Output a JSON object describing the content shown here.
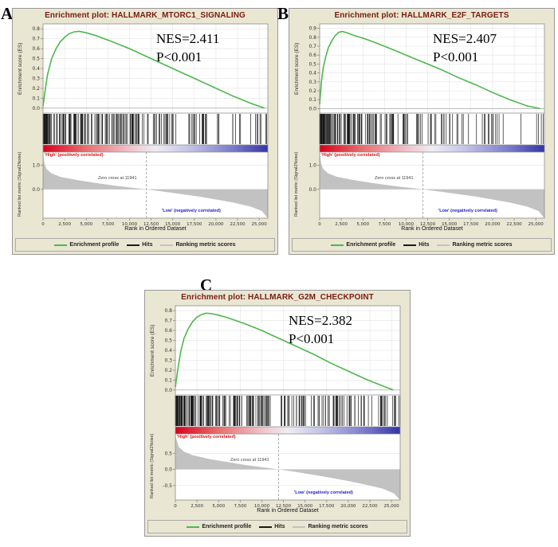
{
  "style": {
    "colors": {
      "panel_bg": "#e9e6d2",
      "panel_border": "#999999",
      "plot_bg": "#ffffff",
      "grid": "#e3e3e3",
      "axis": "#8c8c8c",
      "profile_green": "#4db84d",
      "hits_black": "#1a1a1a",
      "metric_gray": "#c2c2c2",
      "title_maroon": "#7a1c12",
      "high_red": "#dd1111",
      "low_blue": "#2222cc",
      "tick_text": "#333333"
    },
    "gradient_stops": [
      [
        "0%",
        "#d8001e"
      ],
      [
        "18%",
        "#e56a6a"
      ],
      [
        "38%",
        "#f0c0c8"
      ],
      [
        "50%",
        "#efecf4"
      ],
      [
        "65%",
        "#c3c3e6"
      ],
      [
        "85%",
        "#7878c8"
      ],
      [
        "100%",
        "#3434a4"
      ]
    ]
  },
  "chart_data": [
    {
      "type": "line",
      "panel_letter": "A",
      "title": "Enrichment plot: HALLMARK_MTORC1_SIGNALING",
      "nes_label": "NES=2.411",
      "p_label": "P<0.001",
      "high_label": "'High' (positively correlated)",
      "low_label": "'Low' (negatively correlated)",
      "zero_cross_label": "Zero cross at 11941",
      "zero_cross_rank": 11941,
      "es_ylabel": "Enrichment score (ES)",
      "rank_ylabel": "Ranked list metric (Signal2Noise)",
      "xlabel": "Rank in Ordered Dataset",
      "x_max": 26000,
      "x_ticks": [
        0,
        2500,
        5000,
        7500,
        10000,
        12500,
        15000,
        17500,
        20000,
        22500,
        25000
      ],
      "x_tick_labels": [
        "0",
        "2,500",
        "5,000",
        "7,500",
        "10,000",
        "12,500",
        "15,000",
        "17,500",
        "20,000",
        "22,500",
        "25,000"
      ],
      "es_ylim": [
        -0.05,
        0.85
      ],
      "es_yticks": [
        0,
        0.1,
        0.2,
        0.3,
        0.4,
        0.5,
        0.6,
        0.7,
        0.8
      ],
      "rank_ylim": [
        -1.2,
        1.55
      ],
      "rank_yticks": [
        1.0,
        0.0
      ],
      "es_curve": [
        [
          0,
          0.02
        ],
        [
          250,
          0.18
        ],
        [
          500,
          0.33
        ],
        [
          1000,
          0.5
        ],
        [
          1500,
          0.6
        ],
        [
          2000,
          0.67
        ],
        [
          2500,
          0.715
        ],
        [
          3000,
          0.75
        ],
        [
          3600,
          0.77
        ],
        [
          4200,
          0.775
        ],
        [
          5000,
          0.76
        ],
        [
          6000,
          0.735
        ],
        [
          8000,
          0.67
        ],
        [
          10000,
          0.6
        ],
        [
          12000,
          0.52
        ],
        [
          14000,
          0.44
        ],
        [
          16000,
          0.36
        ],
        [
          18000,
          0.28
        ],
        [
          20000,
          0.2
        ],
        [
          22000,
          0.12
        ],
        [
          24000,
          0.05
        ],
        [
          25600,
          0.0
        ]
      ],
      "ranked_metric": [
        [
          0,
          1.55
        ],
        [
          150,
          1.1
        ],
        [
          400,
          0.85
        ],
        [
          1000,
          0.66
        ],
        [
          2000,
          0.52
        ],
        [
          4000,
          0.38
        ],
        [
          6000,
          0.27
        ],
        [
          8000,
          0.17
        ],
        [
          10000,
          0.08
        ],
        [
          11941,
          0.0
        ],
        [
          14000,
          -0.1
        ],
        [
          16000,
          -0.2
        ],
        [
          18000,
          -0.3
        ],
        [
          20000,
          -0.42
        ],
        [
          22000,
          -0.55
        ],
        [
          24000,
          -0.72
        ],
        [
          25300,
          -0.9
        ],
        [
          26000,
          -1.2
        ]
      ],
      "hits": {
        "count": 200,
        "skew": 2.0,
        "seed": 11
      },
      "legend_items": [
        {
          "label": "Enrichment profile",
          "color": "#4db84d"
        },
        {
          "label": "Hits",
          "color": "#1a1a1a"
        },
        {
          "label": "Ranking metric scores",
          "color": "#c2c2c2"
        }
      ]
    },
    {
      "type": "line",
      "panel_letter": "B",
      "title": "Enrichment plot: HALLMARK_E2F_TARGETS",
      "nes_label": "NES=2.407",
      "p_label": "P<0.001",
      "high_label": "'High' (positively correlated)",
      "low_label": "'Low' (negatively correlated)",
      "zero_cross_label": "Zero cross at 11941",
      "zero_cross_rank": 11941,
      "es_ylabel": "Enrichment score (ES)",
      "rank_ylabel": "Ranked list metric (Signal2Noise)",
      "xlabel": "Rank in Ordered Dataset",
      "x_max": 26000,
      "x_ticks": [
        0,
        2500,
        5000,
        7500,
        10000,
        12500,
        15000,
        17500,
        20000,
        22500,
        25000
      ],
      "x_tick_labels": [
        "0",
        "2,500",
        "5,000",
        "7,500",
        "10,000",
        "12,500",
        "15,000",
        "17,500",
        "20,000",
        "22,500",
        "25,000"
      ],
      "es_ylim": [
        -0.05,
        0.95
      ],
      "es_yticks": [
        0,
        0.1,
        0.2,
        0.3,
        0.4,
        0.5,
        0.6,
        0.7,
        0.8,
        0.9
      ],
      "rank_ylim": [
        -1.2,
        1.55
      ],
      "rank_yticks": [
        1.0,
        0.0
      ],
      "es_curve": [
        [
          0,
          0.05
        ],
        [
          200,
          0.3
        ],
        [
          400,
          0.45
        ],
        [
          700,
          0.58
        ],
        [
          1000,
          0.68
        ],
        [
          1400,
          0.76
        ],
        [
          1800,
          0.82
        ],
        [
          2200,
          0.855
        ],
        [
          2600,
          0.865
        ],
        [
          3200,
          0.85
        ],
        [
          4000,
          0.82
        ],
        [
          5000,
          0.79
        ],
        [
          6000,
          0.755
        ],
        [
          8000,
          0.68
        ],
        [
          10000,
          0.6
        ],
        [
          12000,
          0.52
        ],
        [
          14000,
          0.44
        ],
        [
          16000,
          0.35
        ],
        [
          18000,
          0.27
        ],
        [
          20000,
          0.18
        ],
        [
          22000,
          0.1
        ],
        [
          24000,
          0.03
        ],
        [
          25500,
          0.0
        ]
      ],
      "ranked_metric": [
        [
          0,
          1.55
        ],
        [
          150,
          1.1
        ],
        [
          400,
          0.85
        ],
        [
          1000,
          0.66
        ],
        [
          2000,
          0.52
        ],
        [
          4000,
          0.38
        ],
        [
          6000,
          0.27
        ],
        [
          8000,
          0.17
        ],
        [
          10000,
          0.08
        ],
        [
          11941,
          0.0
        ],
        [
          14000,
          -0.1
        ],
        [
          16000,
          -0.2
        ],
        [
          18000,
          -0.3
        ],
        [
          20000,
          -0.42
        ],
        [
          22000,
          -0.55
        ],
        [
          24000,
          -0.72
        ],
        [
          25300,
          -0.9
        ],
        [
          26000,
          -1.2
        ]
      ],
      "hits": {
        "count": 200,
        "skew": 2.4,
        "seed": 22
      },
      "legend_items": [
        {
          "label": "Enrichment profile",
          "color": "#4db84d"
        },
        {
          "label": "Hits",
          "color": "#1a1a1a"
        },
        {
          "label": "Ranking metric scores",
          "color": "#c2c2c2"
        }
      ]
    },
    {
      "type": "line",
      "panel_letter": "C",
      "title": "Enrichment plot: HALLMARK_G2M_CHECKPOINT",
      "nes_label": "NES=2.382",
      "p_label": "P<0.001",
      "high_label": "'High' (positively correlated)",
      "low_label": "'Low' (negatively correlated)",
      "zero_cross_label": "Zero cross at 11941",
      "zero_cross_rank": 11941,
      "es_ylabel": "Enrichment score (ES)",
      "rank_ylabel": "Ranked list metric (Signal2Noise)",
      "xlabel": "Rank in Ordered Dataset",
      "x_max": 26000,
      "x_ticks": [
        0,
        2500,
        5000,
        7500,
        10000,
        12500,
        15000,
        17500,
        20000,
        22500,
        25000
      ],
      "x_tick_labels": [
        "0",
        "2,500",
        "5,000",
        "7,500",
        "10,000",
        "12,500",
        "15,000",
        "17,500",
        "20,000",
        "22,500",
        "25,000"
      ],
      "es_ylim": [
        -0.05,
        0.85
      ],
      "es_yticks": [
        0,
        0.1,
        0.2,
        0.3,
        0.4,
        0.5,
        0.6,
        0.7,
        0.8
      ],
      "rank_ylim": [
        -0.95,
        1.1
      ],
      "rank_yticks": [
        0.5,
        0.0,
        -0.5
      ],
      "es_curve": [
        [
          0,
          0.03
        ],
        [
          300,
          0.22
        ],
        [
          600,
          0.38
        ],
        [
          1000,
          0.52
        ],
        [
          1500,
          0.62
        ],
        [
          2000,
          0.69
        ],
        [
          2500,
          0.735
        ],
        [
          3000,
          0.76
        ],
        [
          3600,
          0.775
        ],
        [
          4200,
          0.77
        ],
        [
          5000,
          0.755
        ],
        [
          6000,
          0.73
        ],
        [
          8000,
          0.67
        ],
        [
          10000,
          0.6
        ],
        [
          12000,
          0.52
        ],
        [
          14000,
          0.44
        ],
        [
          16000,
          0.36
        ],
        [
          18000,
          0.27
        ],
        [
          20000,
          0.19
        ],
        [
          22000,
          0.11
        ],
        [
          24000,
          0.04
        ],
        [
          25200,
          0.0
        ]
      ],
      "ranked_metric": [
        [
          0,
          1.1
        ],
        [
          150,
          0.9
        ],
        [
          400,
          0.7
        ],
        [
          1000,
          0.55
        ],
        [
          2000,
          0.44
        ],
        [
          4000,
          0.32
        ],
        [
          6000,
          0.23
        ],
        [
          8000,
          0.14
        ],
        [
          10000,
          0.07
        ],
        [
          11941,
          0.0
        ],
        [
          14000,
          -0.08
        ],
        [
          16000,
          -0.17
        ],
        [
          18000,
          -0.26
        ],
        [
          20000,
          -0.36
        ],
        [
          22000,
          -0.47
        ],
        [
          24000,
          -0.6
        ],
        [
          25300,
          -0.75
        ],
        [
          26000,
          -0.95
        ]
      ],
      "hits": {
        "count": 230,
        "skew": 1.9,
        "seed": 33
      },
      "legend_items": [
        {
          "label": "Enrichment profile",
          "color": "#4db84d"
        },
        {
          "label": "Hits",
          "color": "#1a1a1a"
        },
        {
          "label": "Ranking metric scores",
          "color": "#c2c2c2"
        }
      ]
    }
  ]
}
